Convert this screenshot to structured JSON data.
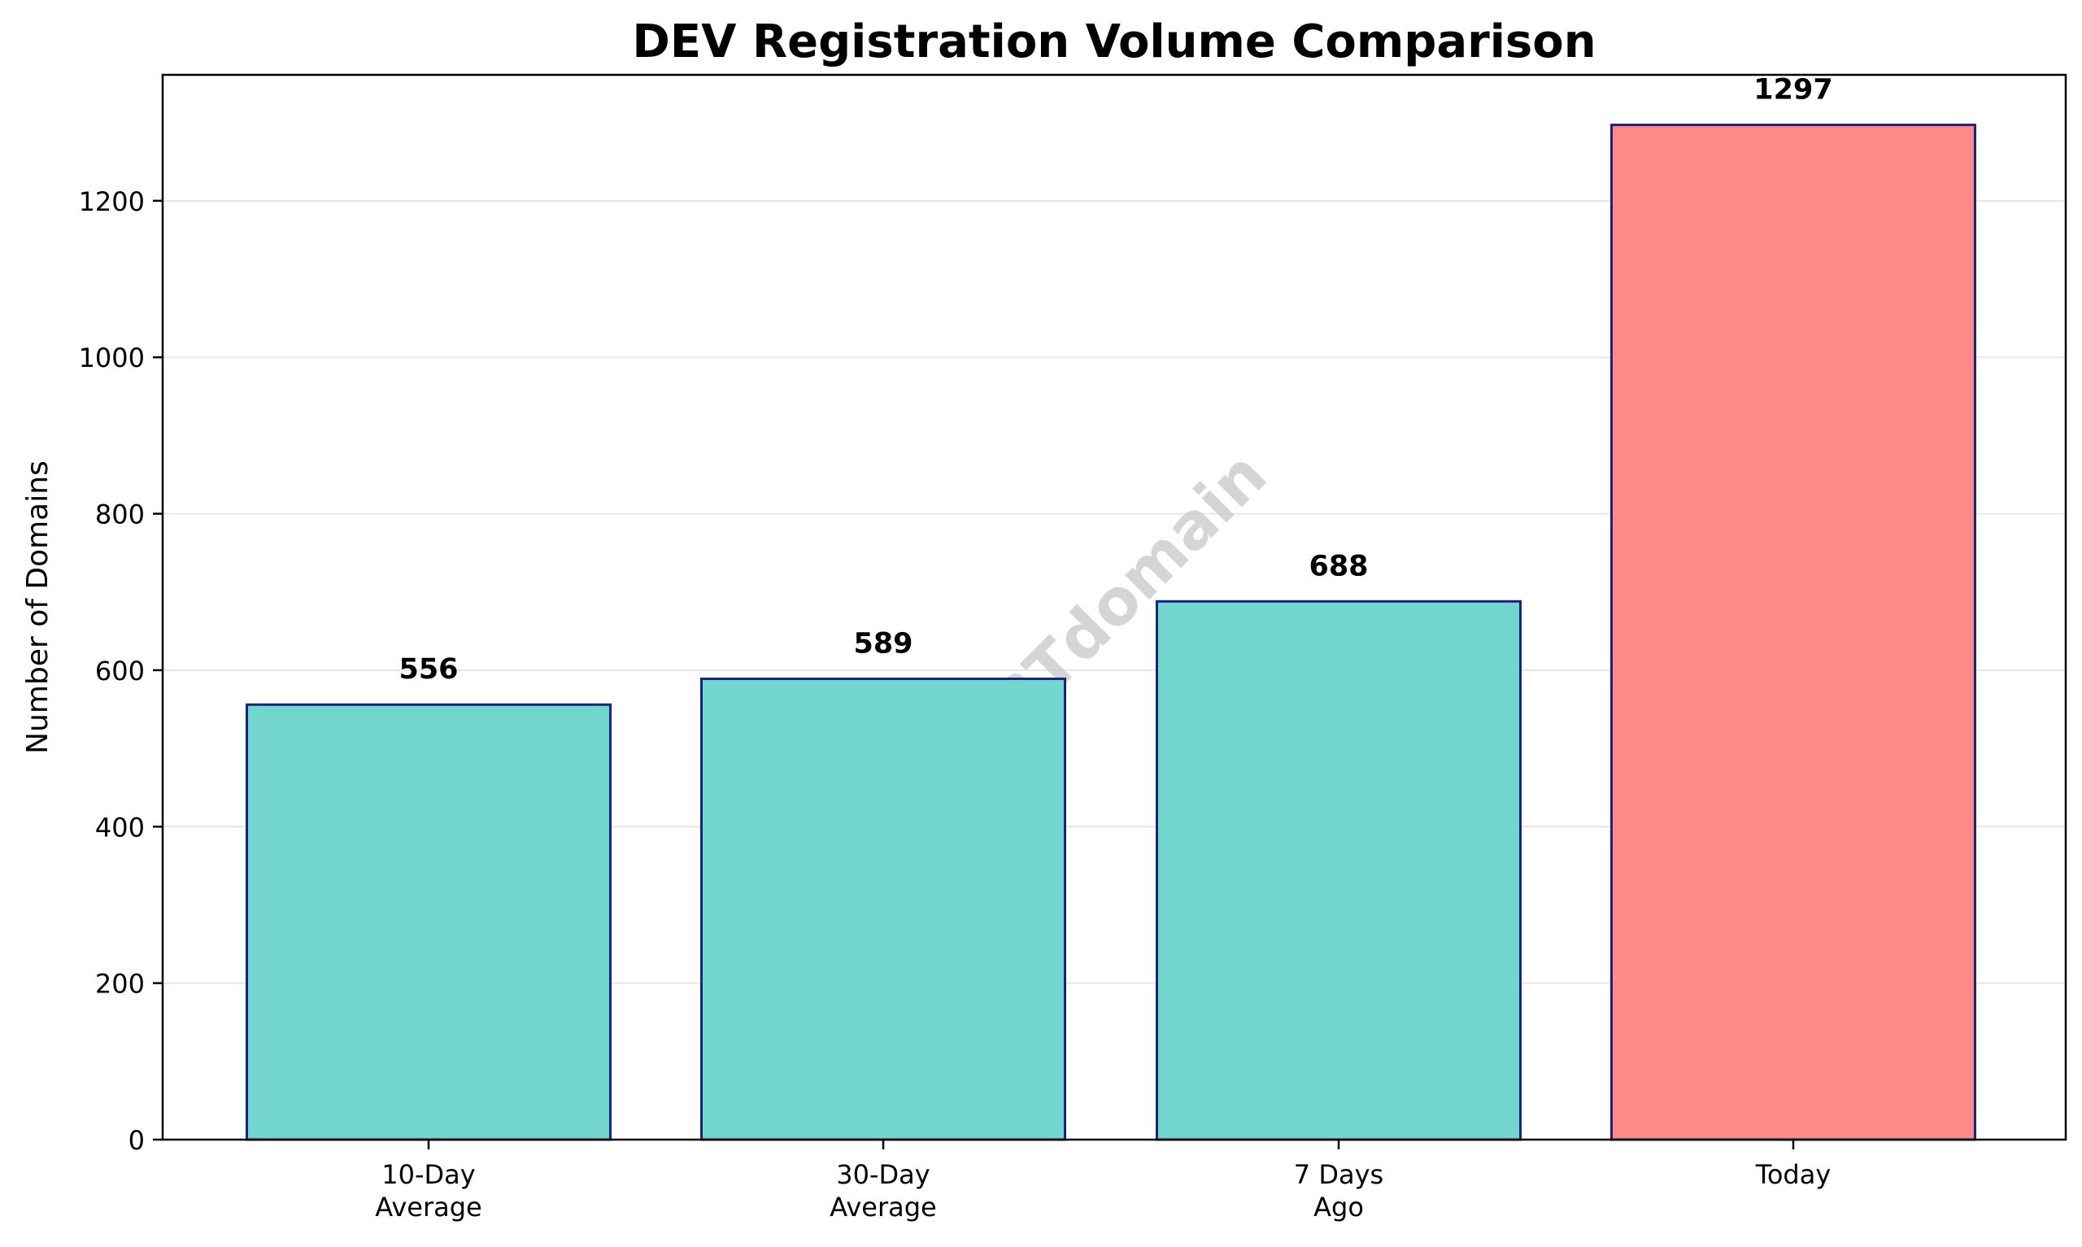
{
  "chart_data": {
    "type": "bar",
    "title": "DEV Registration Volume Comparison",
    "xlabel": "",
    "ylabel": "Number of Domains",
    "categories": [
      "10-Day Average",
      "30-Day Average",
      "7 Days Ago",
      "Today"
    ],
    "category_label_lines": [
      [
        "10-Day",
        "Average"
      ],
      [
        "30-Day",
        "Average"
      ],
      [
        "7 Days",
        "Ago"
      ],
      [
        "Today"
      ]
    ],
    "values": [
      556,
      589,
      688,
      1297
    ],
    "data_labels": [
      "556",
      "589",
      "688",
      "1297"
    ],
    "ylim": [
      0,
      1361
    ],
    "yticks": [
      0,
      200,
      400,
      600,
      800,
      1000,
      1200
    ],
    "ytick_labels": [
      "0",
      "200",
      "400",
      "600",
      "800",
      "1000",
      "1200"
    ],
    "grid": "y-axis only, light gray",
    "legend": "none",
    "watermark": "ABTdomain",
    "colors": {
      "bar_default": "#72d6cf",
      "bar_highlight": "#ff8a88",
      "bar_edge": "#1a237e",
      "grid": "#e6e6e6",
      "axis": "#000000",
      "watermark": "#c8c8c8"
    },
    "bar_fills": [
      "#72d6cf",
      "#72d6cf",
      "#72d6cf",
      "#ff8a88"
    ]
  }
}
